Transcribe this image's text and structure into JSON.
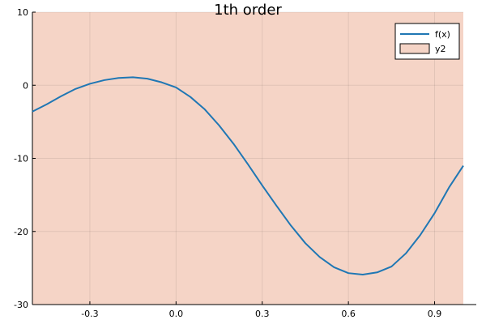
{
  "chart_data": {
    "type": "line",
    "title": "1th order",
    "xlabel": "",
    "ylabel": "",
    "xlim": [
      -0.5,
      1.0
    ],
    "ylim": [
      -30,
      10
    ],
    "xticks": [
      -0.3,
      0.0,
      0.3,
      0.6,
      0.9
    ],
    "xtick_labels": [
      "-0.3",
      "0.0",
      "0.3",
      "0.6",
      "0.9"
    ],
    "yticks": [
      -30,
      -20,
      -10,
      0,
      10
    ],
    "ytick_labels": [
      "-30",
      "-20",
      "-10",
      "0",
      "10"
    ],
    "grid": true,
    "legend": "top-right",
    "series": [
      {
        "name": "f(x)",
        "kind": "line",
        "color": "#1f77b4",
        "x": [
          -0.5,
          -0.45,
          -0.4,
          -0.35,
          -0.3,
          -0.25,
          -0.2,
          -0.15,
          -0.1,
          -0.05,
          0.0,
          0.05,
          0.1,
          0.15,
          0.2,
          0.25,
          0.3,
          0.35,
          0.4,
          0.45,
          0.5,
          0.55,
          0.6,
          0.65,
          0.7,
          0.75,
          0.8,
          0.85,
          0.9,
          0.95,
          1.0
        ],
        "y": [
          -3.6,
          -2.6,
          -1.5,
          -0.5,
          0.2,
          0.7,
          1.0,
          1.1,
          0.9,
          0.4,
          -0.3,
          -1.6,
          -3.3,
          -5.5,
          -8.0,
          -10.8,
          -13.7,
          -16.5,
          -19.2,
          -21.6,
          -23.5,
          -24.9,
          -25.7,
          -25.9,
          -25.6,
          -24.8,
          -23.0,
          -20.5,
          -17.5,
          -14.0,
          -11.0
        ]
      },
      {
        "name": "y2",
        "kind": "area",
        "color": "#f5d4c6",
        "x": [
          -0.5,
          1.0
        ],
        "y": [
          10,
          10
        ],
        "baseline": -30
      }
    ]
  }
}
